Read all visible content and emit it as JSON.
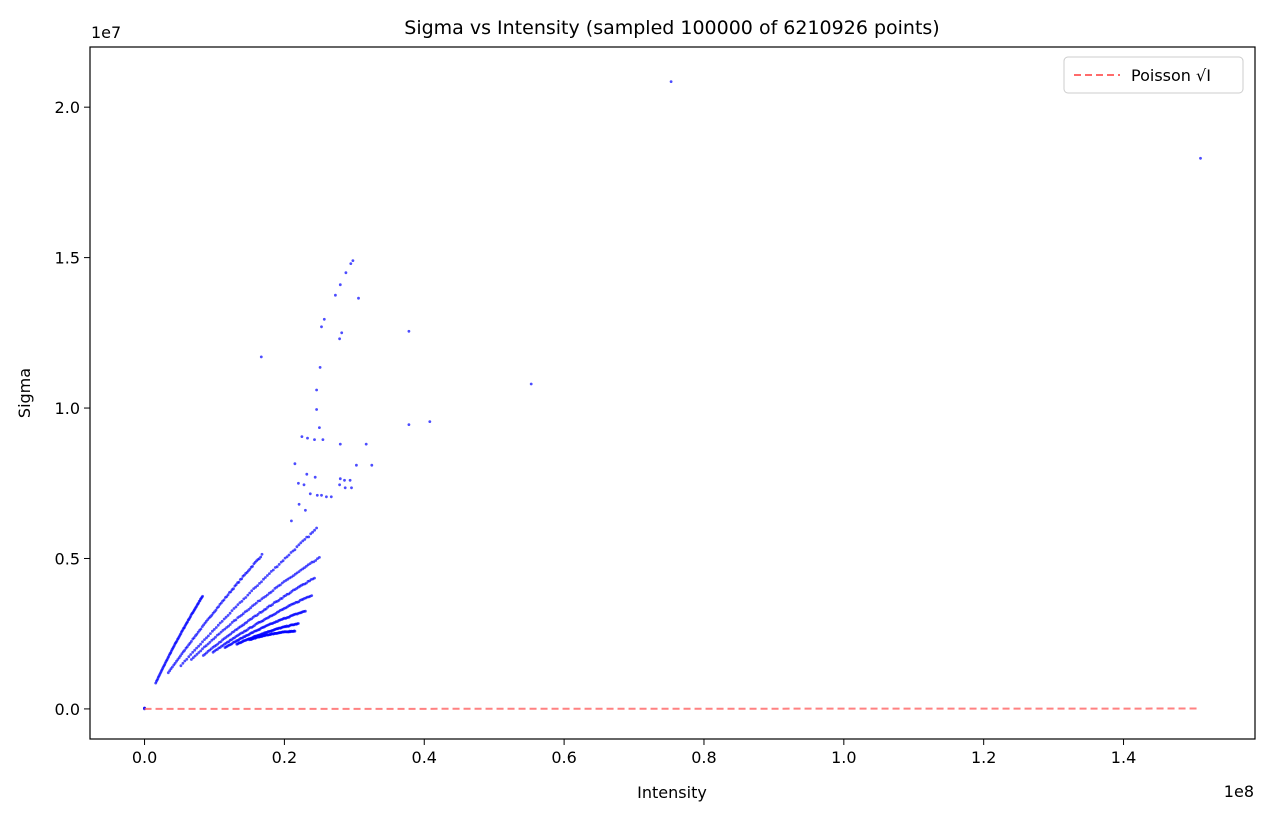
{
  "chart_data": {
    "type": "scatter",
    "title": "Sigma vs Intensity (sampled 100000 of 6210926 points)",
    "xlabel": "Intensity",
    "ylabel": "Sigma",
    "x_offset_label": "1e8",
    "y_offset_label": "1e7",
    "xlim": [
      -7800000,
      158800000
    ],
    "ylim": [
      -1000000,
      22000000
    ],
    "x_ticks": [
      0,
      20000000,
      40000000,
      60000000,
      80000000,
      100000000,
      120000000,
      140000000
    ],
    "x_tick_labels": [
      "0.0",
      "0.2",
      "0.4",
      "0.6",
      "0.8",
      "1.0",
      "1.2",
      "1.4"
    ],
    "y_ticks": [
      0,
      5000000,
      10000000,
      15000000,
      20000000
    ],
    "y_tick_labels": [
      "0.0",
      "0.5",
      "1.0",
      "1.5",
      "2.0"
    ],
    "grid": false,
    "legend_position": "top-right",
    "colors": {
      "scatter": "#0000ff",
      "poisson": "#ff6b6b"
    },
    "legend": [
      {
        "name": "Poisson √I",
        "style": "dashed",
        "color": "#ff6b6b"
      }
    ],
    "poisson_line": {
      "x": [
        0,
        151000000
      ],
      "y": [
        0,
        12288
      ]
    },
    "bands": [
      {
        "x0": 1600000,
        "x1": 8300000,
        "s0": 1.1,
        "s1": 1.0
      },
      {
        "x0": 3400000,
        "x1": 16800000,
        "s0": 0.75,
        "s1": 0.7
      },
      {
        "x0": 5200000,
        "x1": 24600000,
        "s0": 0.6,
        "s1": 0.57
      },
      {
        "x0": 6700000,
        "x1": 25000000,
        "s0": 0.54,
        "s1": 0.47
      },
      {
        "x0": 8400000,
        "x1": 24300000,
        "s0": 0.47,
        "s1": 0.42
      },
      {
        "x0": 9800000,
        "x1": 23900000,
        "s0": 0.43,
        "s1": 0.37
      },
      {
        "x0": 11500000,
        "x1": 23000000,
        "s0": 0.4,
        "s1": 0.33
      },
      {
        "x0": 13200000,
        "x1": 22000000,
        "s0": 0.37,
        "s1": 0.3
      },
      {
        "x0": 15000000,
        "x1": 21500000,
        "s0": 0.35,
        "s1": 0.28
      }
    ],
    "points": [
      [
        75300000,
        20850000
      ],
      [
        151000000,
        18300000
      ],
      [
        55300000,
        10800000
      ],
      [
        37800000,
        12550000
      ],
      [
        37800000,
        9450000
      ],
      [
        40800000,
        9550000
      ],
      [
        29800000,
        14900000
      ],
      [
        29500000,
        14800000
      ],
      [
        28800000,
        14500000
      ],
      [
        28000000,
        14100000
      ],
      [
        30600000,
        13650000
      ],
      [
        27300000,
        13750000
      ],
      [
        25700000,
        12950000
      ],
      [
        25300000,
        12700000
      ],
      [
        28200000,
        12500000
      ],
      [
        27900000,
        12300000
      ],
      [
        25100000,
        11350000
      ],
      [
        24600000,
        10600000
      ],
      [
        24600000,
        9950000
      ],
      [
        25000000,
        9350000
      ],
      [
        25500000,
        8950000
      ],
      [
        24300000,
        8950000
      ],
      [
        23300000,
        9000000
      ],
      [
        28000000,
        8800000
      ],
      [
        31700000,
        8800000
      ],
      [
        30300000,
        8100000
      ],
      [
        32500000,
        8100000
      ],
      [
        28000000,
        7650000
      ],
      [
        28600000,
        7600000
      ],
      [
        29400000,
        7600000
      ],
      [
        27900000,
        7450000
      ],
      [
        28700000,
        7350000
      ],
      [
        29600000,
        7350000
      ],
      [
        22000000,
        7500000
      ],
      [
        22800000,
        7450000
      ],
      [
        23700000,
        7150000
      ],
      [
        24700000,
        7100000
      ],
      [
        25300000,
        7100000
      ],
      [
        26000000,
        7050000
      ],
      [
        26700000,
        7050000
      ],
      [
        21500000,
        8150000
      ],
      [
        23200000,
        7800000
      ],
      [
        24400000,
        7700000
      ],
      [
        22100000,
        6800000
      ],
      [
        23000000,
        6600000
      ],
      [
        21000000,
        6250000
      ],
      [
        22500000,
        9050000
      ],
      [
        16700000,
        11700000
      ],
      [
        0,
        0
      ],
      [
        0,
        15000
      ],
      [
        0,
        30000
      ],
      [
        15000,
        25000
      ]
    ],
    "seed": 7
  }
}
